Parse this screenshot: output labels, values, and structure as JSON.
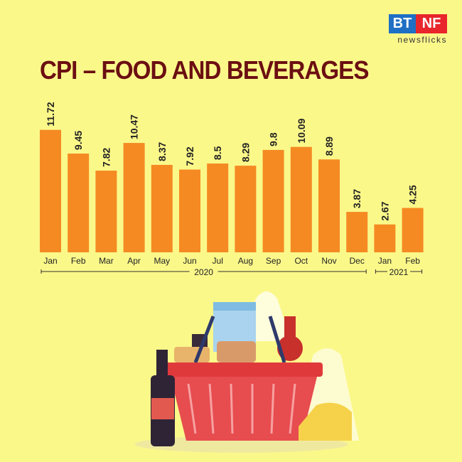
{
  "logo": {
    "left": "BT",
    "right": "NF",
    "sub": "newsflicks"
  },
  "title": "CPI – FOOD AND BEVERAGES",
  "colors": {
    "background": "#fbf88a",
    "bar": "#f58a23",
    "title": "#6b0f12"
  },
  "chart_data": {
    "type": "bar",
    "title": "CPI – FOOD AND BEVERAGES",
    "categories": [
      "Jan",
      "Feb",
      "Mar",
      "Apr",
      "May",
      "Jun",
      "Jul",
      "Aug",
      "Sep",
      "Oct",
      "Nov",
      "Dec",
      "Jan",
      "Feb"
    ],
    "values": [
      11.72,
      9.45,
      7.82,
      10.47,
      8.37,
      7.92,
      8.5,
      8.29,
      9.8,
      10.09,
      8.89,
      3.87,
      2.67,
      4.25
    ],
    "value_labels": [
      "11.72",
      "9.45",
      "7.82",
      "10.47",
      "8.37",
      "7.92",
      "8.5",
      "8.29",
      "9.8",
      "10.09",
      "8.89",
      "3.87",
      "2.67",
      "4.25"
    ],
    "groups": [
      {
        "label": "2020",
        "span": [
          0,
          11
        ]
      },
      {
        "label": "2021",
        "span": [
          12,
          13
        ]
      }
    ],
    "xlabel": "",
    "ylabel": "",
    "ylim": [
      0,
      12
    ],
    "grid": false,
    "legend": "none"
  },
  "illustration": "grocery-basket"
}
